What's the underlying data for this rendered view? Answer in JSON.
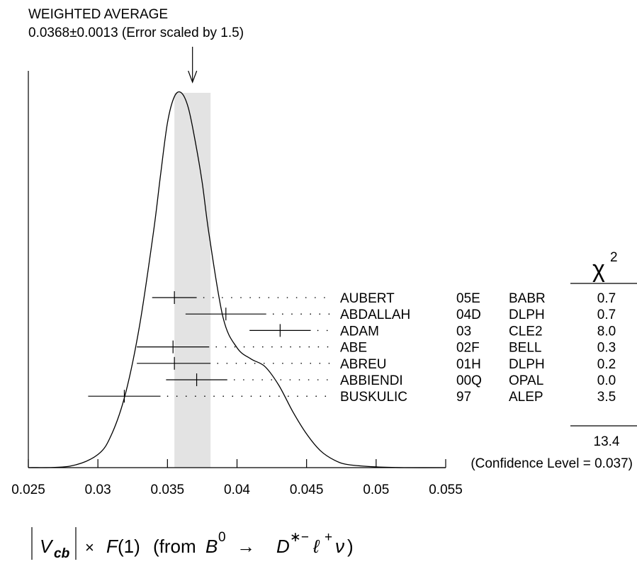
{
  "chart_data": {
    "type": "scatter",
    "title": "WEIGHTED AVERAGE",
    "subtitle": "0.0368±0.0013 (Error scaled by 1.5)",
    "xlim": [
      0.025,
      0.055
    ],
    "x_ticks": [
      "0.025",
      "0.03",
      "0.035",
      "0.04",
      "0.045",
      "0.05",
      "0.055"
    ],
    "average": {
      "value": 0.0368,
      "error": 0.0013
    },
    "band": [
      0.0355,
      0.0381
    ],
    "chi2_header": "χ",
    "chi2_exp": "2",
    "measurements": [
      {
        "author": "AUBERT",
        "year": "05E",
        "exp": "BABR",
        "value": 0.0355,
        "low": 0.0339,
        "high": 0.0371,
        "chi2": "0.7"
      },
      {
        "author": "ABDALLAH",
        "year": "04D",
        "exp": "DLPH",
        "value": 0.0392,
        "low": 0.0363,
        "high": 0.0421,
        "chi2": "0.7"
      },
      {
        "author": "ADAM",
        "year": "03",
        "exp": "CLE2",
        "value": 0.0431,
        "low": 0.0409,
        "high": 0.0453,
        "chi2": "8.0"
      },
      {
        "author": "ABE",
        "year": "02F",
        "exp": "BELL",
        "value": 0.0354,
        "low": 0.0328,
        "high": 0.038,
        "chi2": "0.3"
      },
      {
        "author": "ABREU",
        "year": "01H",
        "exp": "DLPH",
        "value": 0.0355,
        "low": 0.0328,
        "high": 0.0381,
        "chi2": "0.2"
      },
      {
        "author": "ABBIENDI",
        "year": "00Q",
        "exp": "OPAL",
        "value": 0.0371,
        "low": 0.0349,
        "high": 0.0393,
        "chi2": "0.0"
      },
      {
        "author": "BUSKULIC",
        "year": "97",
        "exp": "ALEP",
        "value": 0.0319,
        "low": 0.0293,
        "high": 0.0345,
        "chi2": "3.5"
      }
    ],
    "chi2_total": "13.4",
    "confidence_level": "(Confidence Level = 0.037)",
    "ideogram": {
      "x": [
        0.025,
        0.028,
        0.03,
        0.031,
        0.032,
        0.033,
        0.034,
        0.0345,
        0.035,
        0.0355,
        0.036,
        0.0365,
        0.037,
        0.0375,
        0.038,
        0.039,
        0.04,
        0.041,
        0.042,
        0.043,
        0.044,
        0.045,
        0.046,
        0.047,
        0.048,
        0.05,
        0.052,
        0.055
      ],
      "y": [
        0.0,
        0.004,
        0.035,
        0.09,
        0.2,
        0.38,
        0.63,
        0.78,
        0.92,
        0.99,
        1.0,
        0.96,
        0.87,
        0.76,
        0.62,
        0.4,
        0.32,
        0.29,
        0.27,
        0.22,
        0.15,
        0.09,
        0.045,
        0.02,
        0.008,
        0.002,
        0.0,
        0.0
      ]
    },
    "xlabel_parts": {
      "v": "V",
      "cb": "cb",
      "times": "×",
      "f": "F",
      "one": "(1)",
      "from": "(from",
      "b": "B",
      "b_sup": "0",
      "arrow": "→",
      "d": "D",
      "d_sup": "∗−",
      "ell": "ℓ",
      "ell_sup": "+",
      "nu": "ν",
      "close": ")"
    }
  }
}
